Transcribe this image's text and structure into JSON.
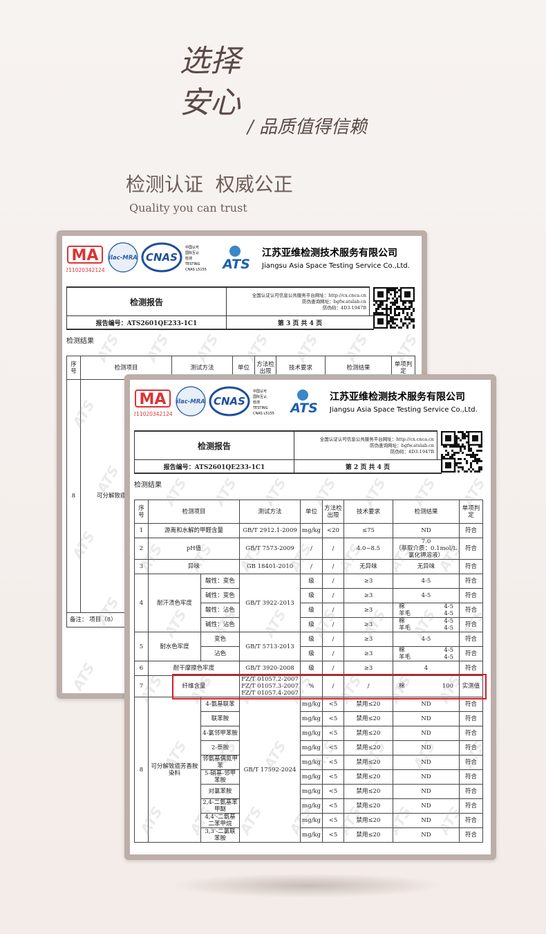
{
  "header": {
    "title_line1": "选择",
    "title_line2": "安心",
    "subtitle": "/ 品质值得信赖",
    "section_title": "检测认证  权威公正",
    "section_subtitle": "Quality you can trust"
  },
  "lab": {
    "ma": "MA",
    "ma_code": "211020342124",
    "ilac": "ilac-MRA",
    "cnas": "CNAS",
    "cnas_notes": [
      "中国认可",
      "国际互认",
      "检测",
      "TESTING",
      "CNAS L5155"
    ],
    "ats": "ATS",
    "name_cn": "江苏亚维检测技术服务有限公司",
    "name_en": "Jiangsu Asia Space Testing Service Co.,Ltd."
  },
  "watermark": "ATS",
  "reports": [
    {
      "report_title": "检测报告",
      "platform": [
        "全国认证认可信息公共服务平台网址：http://cx.cnca.cn",
        "防伪查询网址：bgfw.atslab.cn",
        "防伪码：4D3-1947B"
      ],
      "report_no": "报告编号：ATS2601QE233-1C1",
      "page": "第 3 页 共 4 页",
      "section": "检测结果",
      "columns": [
        "序号",
        "检测项目",
        "测试方法",
        "单位",
        "方法检出限",
        "技术要求",
        "检测结果",
        "单项判定"
      ],
      "rows": [
        {
          "no": "8",
          "item": "可分解致癌芳香胺染料"
        }
      ],
      "note": "备注：   项目（8）"
    },
    {
      "report_title": "检测报告",
      "platform": [
        "全国认证认可信息公共服务平台网址：http://cx.cnca.cn",
        "防伪查询网址：bgfw.atslab.cn",
        "防伪码：4D3-1947B"
      ],
      "report_no": "报告编号：ATS2601QE233-1C1",
      "page": "第 2 页 共 4 页",
      "section": "检测结果",
      "columns": [
        "序号",
        "检测项目",
        "测试方法",
        "单位",
        "方法检出限",
        "技术要求",
        "检测结果",
        "单项判定"
      ],
      "rows": [
        {
          "no": "1",
          "item": "游离和水解的甲醛含量",
          "method": "GB/T 2912.1-2009",
          "unit": "mg/kg",
          "limit": "<20",
          "req": "≤75",
          "result": "ND",
          "verdict": "符合"
        },
        {
          "no": "2",
          "item": "pH值",
          "method": "GB/T 7573-2009",
          "unit": "/",
          "limit": "/",
          "req": "4.0~8.5",
          "result": "7.0\n（萃取介质：0.1mol/L\n氯化钾溶液）",
          "verdict": "符合"
        },
        {
          "no": "3",
          "item": "异味",
          "method": "GB 18401-2010",
          "unit": "/",
          "limit": "/",
          "req": "无异味",
          "result": "无异味",
          "verdict": "符合"
        },
        {
          "no": "4",
          "item": "耐汗渍色牢度",
          "method": "GB/T 3922-2013",
          "subs": [
            {
              "name": "酸性：变色",
              "unit": "级",
              "limit": "/",
              "req": "≥3",
              "result": "4-5",
              "verdict": "符合"
            },
            {
              "name": "碱性：变色",
              "unit": "级",
              "limit": "/",
              "req": "≥3",
              "result": "4-5",
              "verdict": "符合"
            },
            {
              "name": "酸性：沾色",
              "unit": "级",
              "limit": "/",
              "req": "≥3",
              "result": [
                {
                  "label": "棉",
                  "value": "4-5"
                },
                {
                  "label": "羊毛",
                  "value": "4-5"
                }
              ],
              "verdict": "符合"
            },
            {
              "name": "碱性：沾色",
              "unit": "级",
              "limit": "/",
              "req": "≥3",
              "result": [
                {
                  "label": "棉",
                  "value": "4-5"
                },
                {
                  "label": "羊毛",
                  "value": "4-5"
                }
              ],
              "verdict": "符合"
            }
          ]
        },
        {
          "no": "5",
          "item": "耐水色牢度",
          "method": "GB/T 5713-2013",
          "subs": [
            {
              "name": "变色",
              "unit": "级",
              "limit": "/",
              "req": "≥3",
              "result": "4-5",
              "verdict": "符合"
            },
            {
              "name": "沾色",
              "unit": "级",
              "limit": "/",
              "req": "≥3",
              "result": [
                {
                  "label": "棉",
                  "value": "4-5"
                },
                {
                  "label": "羊毛",
                  "value": "4-5"
                }
              ],
              "verdict": "符合"
            }
          ]
        },
        {
          "no": "6",
          "item": "耐干摩擦色牢度",
          "method": "GB/T 3920-2008",
          "unit": "级",
          "limit": "/",
          "req": "≥3",
          "result": "4",
          "verdict": "符合"
        },
        {
          "no": "7",
          "item": "纤维含量",
          "method": "FZ/T 01057.2-2007\nFZ/T 01057.3-2007\nFZ/T 01057.4-2007",
          "unit": "%",
          "limit": "/",
          "req": "/",
          "result": [
            {
              "label": "棉",
              "value": "100"
            }
          ],
          "verdict": "实测值",
          "highlight": true
        },
        {
          "no": "8",
          "item": "可分解致癌芳香胺染料",
          "method": "GB/T 17592-2024",
          "subs": [
            {
              "name": "4-氨基联苯",
              "unit": "mg/kg",
              "limit": "<5",
              "req": "禁用≤20",
              "result": "ND",
              "verdict": "符合"
            },
            {
              "name": "联苯胺",
              "unit": "mg/kg",
              "limit": "<5",
              "req": "禁用≤20",
              "result": "ND",
              "verdict": "符合"
            },
            {
              "name": "4-氯邻甲苯胺",
              "unit": "mg/kg",
              "limit": "<5",
              "req": "禁用≤20",
              "result": "ND",
              "verdict": "符合"
            },
            {
              "name": "2-萘胺",
              "unit": "mg/kg",
              "limit": "<5",
              "req": "禁用≤20",
              "result": "ND",
              "verdict": "符合"
            },
            {
              "name": "邻氨基偶氮甲苯",
              "unit": "mg/kg",
              "limit": "<5",
              "req": "禁用≤20",
              "result": "ND",
              "verdict": "符合"
            },
            {
              "name": "5-硝基-邻甲苯胺",
              "unit": "mg/kg",
              "limit": "<5",
              "req": "禁用≤20",
              "result": "ND",
              "verdict": "符合"
            },
            {
              "name": "对氯苯胺",
              "unit": "mg/kg",
              "limit": "<5",
              "req": "禁用≤20",
              "result": "ND",
              "verdict": "符合"
            },
            {
              "name": "2,4-二氨基苯甲醚",
              "unit": "mg/kg",
              "limit": "<5",
              "req": "禁用≤20",
              "result": "ND",
              "verdict": "符合"
            },
            {
              "name": "4,4'-二氨基二苯甲烷",
              "unit": "mg/kg",
              "limit": "<5",
              "req": "禁用≤20",
              "result": "ND",
              "verdict": "符合"
            },
            {
              "name": "3,3'-二氯联苯胺",
              "unit": "mg/kg",
              "limit": "<5",
              "req": "禁用≤20",
              "result": "ND",
              "verdict": "符合"
            }
          ]
        }
      ]
    }
  ]
}
